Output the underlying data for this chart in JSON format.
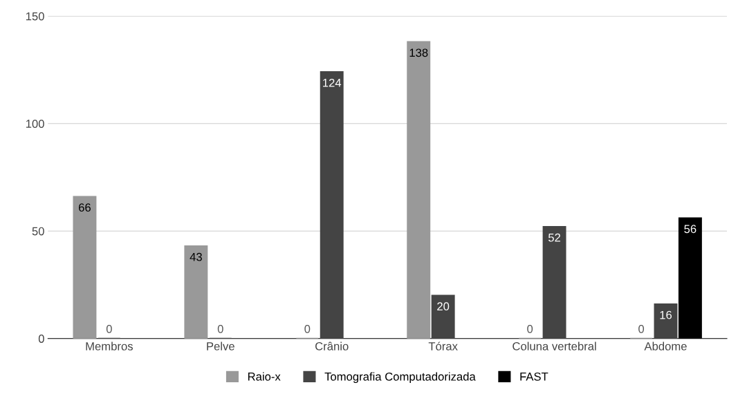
{
  "chart_data": {
    "type": "bar",
    "categories": [
      "Membros",
      "Pelve",
      "Crânio",
      "Tórax",
      "Coluna vertebral",
      "Abdome"
    ],
    "series": [
      {
        "name": "Raio-x",
        "color": "#999999",
        "values": [
          66,
          43,
          0,
          138,
          0,
          0
        ]
      },
      {
        "name": "Tomografia Computadorizada",
        "color": "#444444",
        "values": [
          0,
          0,
          124,
          20,
          52,
          16
        ]
      },
      {
        "name": "FAST",
        "color": "#000000",
        "values": [
          null,
          null,
          null,
          null,
          null,
          56
        ]
      }
    ],
    "ylim": [
      0,
      150
    ],
    "yticks": [
      0,
      50,
      100,
      150
    ],
    "grid": "y",
    "legend": "bottom",
    "data_labels": true
  }
}
